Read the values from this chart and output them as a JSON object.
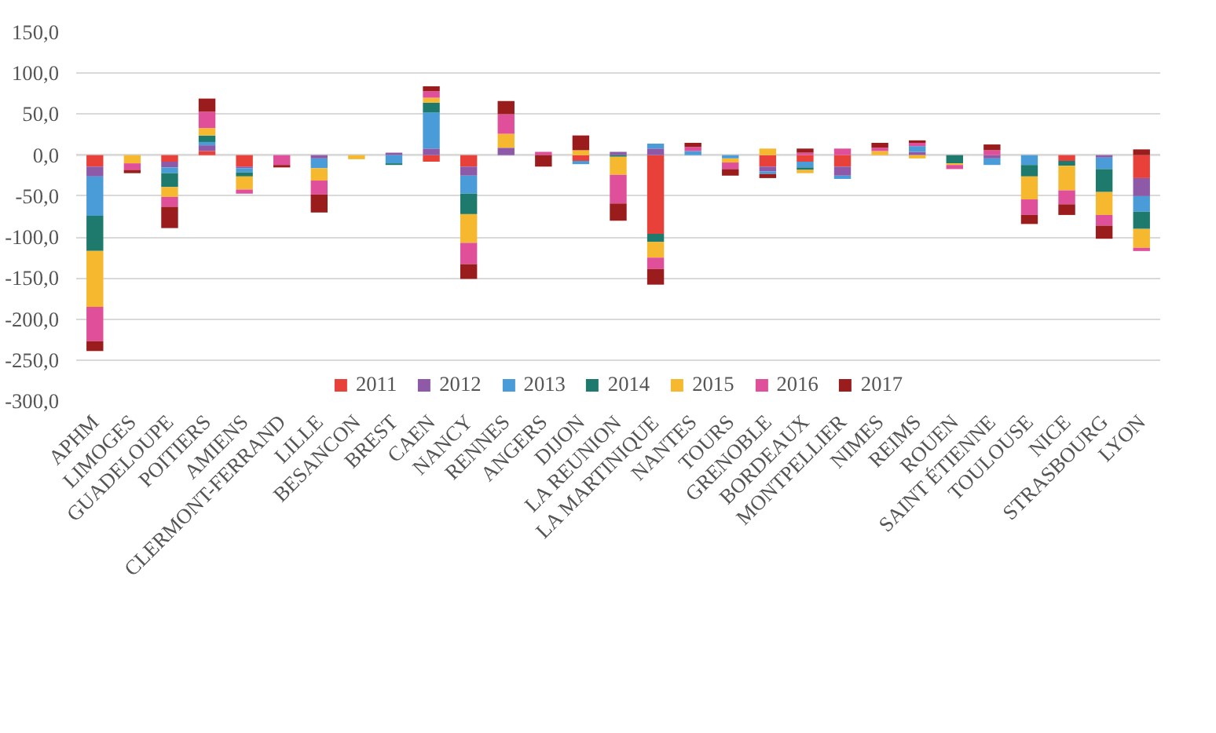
{
  "chart_data": {
    "type": "bar",
    "stacked": true,
    "categories": [
      "APHM",
      "LIMOGES",
      "GUADELOUPE",
      "POITIERS",
      "AMIENS",
      "CLERMONT-FERRAND",
      "LILLE",
      "BESANCON",
      "BREST",
      "CAEN",
      "NANCY",
      "RENNES",
      "ANGERS",
      "DIJON",
      "LA REUNION",
      "LA MARTINIQUE",
      "NANTES",
      "TOURS",
      "GRENOBLE",
      "BORDEAUX",
      "MONTPELLIER",
      "NIMES",
      "REIMS",
      "ROUEN",
      "SAINT ÉTIENNE",
      "TOULOUSE",
      "NICE",
      "STRASBOURG",
      "LYON"
    ],
    "series": [
      {
        "name": "2011",
        "color": "#e8413a",
        "values": [
          -14,
          0,
          -8,
          5,
          -14,
          0,
          0,
          0,
          0,
          -8,
          -14,
          0,
          0,
          -7,
          0,
          -96,
          0,
          0,
          -14,
          -8,
          -14,
          0,
          0,
          0,
          0,
          0,
          -7,
          0,
          -28
        ]
      },
      {
        "name": "2012",
        "color": "#8e5aa8",
        "values": [
          -12,
          0,
          -7,
          7,
          -2,
          0,
          -4,
          0,
          3,
          8,
          -11,
          9,
          0,
          0,
          4,
          8,
          0,
          0,
          -6,
          0,
          -11,
          0,
          4,
          0,
          -4,
          0,
          0,
          -3,
          -22
        ]
      },
      {
        "name": "2013",
        "color": "#4a9cd8",
        "values": [
          -48,
          0,
          -7,
          4,
          -5,
          0,
          -12,
          0,
          -10,
          44,
          -22,
          0,
          0,
          -4,
          0,
          6,
          5,
          -4,
          -3,
          -7,
          -4,
          0,
          7,
          0,
          -8,
          -12,
          0,
          -14,
          -19
        ]
      },
      {
        "name": "2014",
        "color": "#1f7a6e",
        "values": [
          -43,
          0,
          -17,
          8,
          -5,
          0,
          0,
          0,
          -2,
          12,
          -25,
          0,
          0,
          0,
          -2,
          -10,
          0,
          0,
          0,
          -3,
          0,
          0,
          0,
          -10,
          0,
          -14,
          -6,
          -28,
          -21
        ]
      },
      {
        "name": "2015",
        "color": "#f5b82e",
        "values": [
          -68,
          -10,
          -12,
          9,
          -16,
          0,
          -15,
          -5,
          0,
          6,
          -35,
          17,
          0,
          6,
          -22,
          -19,
          0,
          -5,
          8,
          -4,
          0,
          5,
          -4,
          -2,
          0,
          -28,
          -30,
          -28,
          -23
        ]
      },
      {
        "name": "2016",
        "color": "#e0509a",
        "values": [
          -42,
          -8,
          -12,
          20,
          -5,
          -12,
          -17,
          0,
          0,
          8,
          -26,
          24,
          4,
          0,
          -35,
          -14,
          5,
          -8,
          0,
          3,
          8,
          4,
          4,
          -5,
          6,
          -19,
          -17,
          -13,
          -4
        ]
      },
      {
        "name": "2017",
        "color": "#9b1c1c",
        "values": [
          -12,
          -4,
          -26,
          16,
          0,
          -3,
          -22,
          0,
          0,
          6,
          -18,
          16,
          -14,
          18,
          -21,
          -19,
          5,
          -8,
          -5,
          5,
          0,
          6,
          3,
          0,
          7,
          -11,
          -13,
          -16,
          7
        ]
      }
    ],
    "ylim": [
      -300,
      150
    ],
    "yticks": [
      {
        "value": -300,
        "label": "-300,0"
      },
      {
        "value": -250,
        "label": "-250,0"
      },
      {
        "value": -200,
        "label": "-200,0"
      },
      {
        "value": -150,
        "label": "-150,0"
      },
      {
        "value": -100,
        "label": "-100,0"
      },
      {
        "value": -50,
        "label": "-50,0"
      },
      {
        "value": 0,
        "label": "0,0"
      },
      {
        "value": 50,
        "label": "50,0"
      },
      {
        "value": 100,
        "label": "100,0"
      },
      {
        "value": 150,
        "label": "150,0"
      }
    ],
    "grid": "y",
    "legend": "bottom"
  }
}
